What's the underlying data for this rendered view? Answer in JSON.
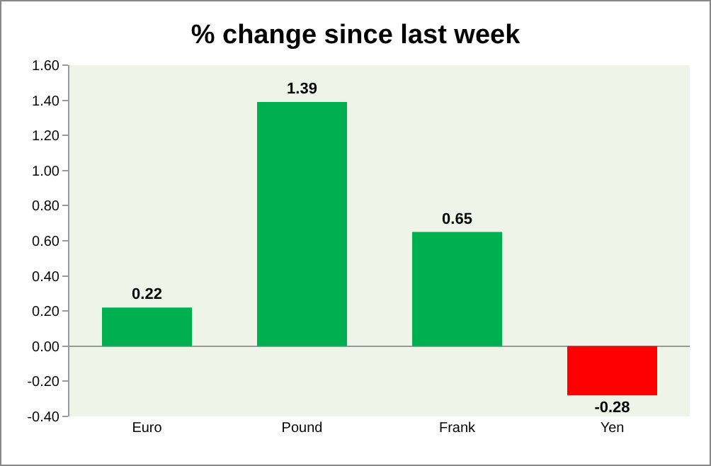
{
  "chart_data": {
    "type": "bar",
    "title": "% change since last week",
    "categories": [
      "Euro",
      "Pound",
      "Frank",
      "Yen"
    ],
    "values": [
      0.22,
      1.39,
      0.65,
      -0.28
    ],
    "colors": [
      "#00b050",
      "#00b050",
      "#00b050",
      "#ff0000"
    ],
    "ylim": [
      -0.4,
      1.6
    ],
    "yticks": [
      {
        "value": -0.4,
        "label": "-0.40"
      },
      {
        "value": -0.2,
        "label": "-0.20"
      },
      {
        "value": 0,
        "label": "0.00"
      },
      {
        "value": 0.2,
        "label": "0.20"
      },
      {
        "value": 0.4,
        "label": "0.40"
      },
      {
        "value": 0.6,
        "label": "0.60"
      },
      {
        "value": 0.8,
        "label": "0.80"
      },
      {
        "value": 1,
        "label": "1.00"
      },
      {
        "value": 1.2,
        "label": "1.20"
      },
      {
        "value": 1.4,
        "label": "1.40"
      },
      {
        "value": 1.6,
        "label": "1.60"
      }
    ],
    "data_labels": true,
    "legend": false
  }
}
